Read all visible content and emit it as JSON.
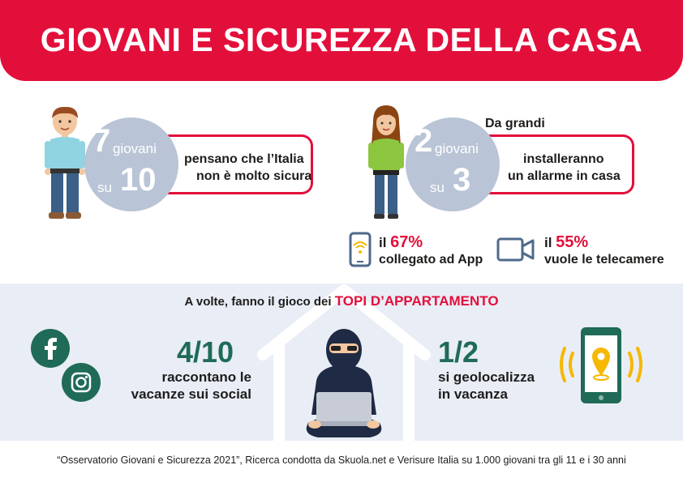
{
  "header": {
    "title": "GIOVANI E SICUREZZA DELLA CASA"
  },
  "stat_left": {
    "num": "7",
    "mid": "giovani",
    "su": "su",
    "den": "10",
    "line1": "pensano che l’Italia",
    "line2": "non è molto sicura"
  },
  "stat_right": {
    "pre": "Da grandi",
    "num": "2",
    "mid": "giovani",
    "su": "su",
    "den": "3",
    "line1": "installeranno",
    "line2": "un allarme in casa"
  },
  "app_stat": {
    "prefix": "il ",
    "pct": "67%",
    "desc": "collegato ad App"
  },
  "cam_stat": {
    "prefix": "il ",
    "pct": "55%",
    "desc": "vuole le telecamere"
  },
  "band": {
    "intro": "A volte, fanno il gioco dei ",
    "highlight": "TOPI D’APPARTAMENTO",
    "social": {
      "value": "4/10",
      "line1": "raccontano le",
      "line2": "vacanze sui social"
    },
    "geo": {
      "value": "1/2",
      "line1": "si geolocalizza",
      "line2": "in vacanza"
    }
  },
  "icons": [
    "boy-icon",
    "girl-icon",
    "phone-wifi-icon",
    "camera-icon",
    "facebook-icon",
    "instagram-icon",
    "house-icon",
    "burglar-icon",
    "phone-location-icon"
  ],
  "colors": {
    "red": "#e30f3b",
    "green": "#1f6b57",
    "grey_circle": "#b9c4d6",
    "band": "#e9edf6",
    "phone_blue": "#4e6a8c",
    "yellow": "#f6b800"
  },
  "footer": {
    "source": "“Osservatorio Giovani e Sicurezza 2021”, Ricerca condotta da Skuola.net e Verisure Italia su 1.000 giovani tra gli 11 e i 30 anni"
  }
}
